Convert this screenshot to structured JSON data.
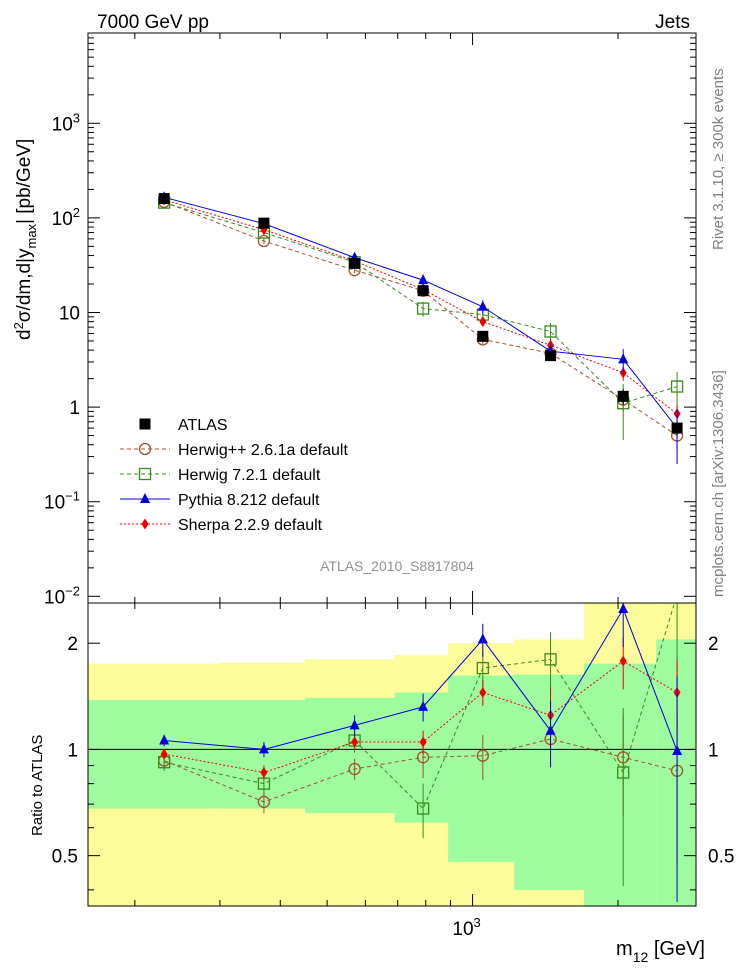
{
  "header": {
    "left": "7000 GeV pp",
    "right": "Jets"
  },
  "side_text": {
    "top": "Rivet 3.1.10, ≥ 300k events",
    "bottom": "mcplots.cern.ch [arXiv:1306.3436]"
  },
  "analysis_label": "ATLAS_2010_S8817804",
  "y_label_main": {
    "base": "d",
    "sup": "2",
    "mid": "σ/dm,d|y",
    "sub": "max",
    "tail": "| [pb/GeV]"
  },
  "y_label_ratio": "Ratio to ATLAS",
  "x_label": {
    "base": "m",
    "sub": "12",
    "tail": " [GeV]"
  },
  "colors": {
    "ATLAS": "#000000",
    "Herwig++": "#a0522d",
    "Herwig7": "#3a8a1a",
    "Pythia": "#0000dd",
    "Sherpa": "#ee0000",
    "band_inner": "#9efc9e",
    "band_outer": "#fdfc9a"
  },
  "chart_data": [
    {
      "type": "scatter",
      "panel": "main",
      "xscale": "log",
      "yscale": "log",
      "xlim": [
        160,
        2900
      ],
      "ylim": [
        0.0085,
        9000
      ],
      "yticks": [
        {
          "v": 0.01,
          "label": "10",
          "sup": "−2"
        },
        {
          "v": 0.1,
          "label": "10",
          "sup": "−1"
        },
        {
          "v": 1,
          "label": "1",
          "sup": ""
        },
        {
          "v": 10,
          "label": "10",
          "sup": ""
        },
        {
          "v": 100,
          "label": "10",
          "sup": "2"
        },
        {
          "v": 1000,
          "label": "10",
          "sup": "3"
        }
      ],
      "x": [
        230,
        370,
        570,
        790,
        1050,
        1450,
        2050,
        2650
      ],
      "series": [
        {
          "name": "ATLAS",
          "label": "ATLAS",
          "marker": "square-filled",
          "style": "none",
          "values": [
            160,
            88,
            33,
            17,
            5.6,
            3.5,
            1.3,
            0.6
          ],
          "err": [
            10,
            6,
            2.5,
            1.5,
            0.5,
            0.4,
            0.25,
            0.1
          ]
        },
        {
          "name": "Herwig++",
          "label": "Herwig++ 2.6.1a default",
          "marker": "circle-open",
          "style": "dashed",
          "values": [
            148,
            57,
            28,
            17,
            5.2,
            3.7,
            1.2,
            0.5
          ],
          "err": [
            8,
            4,
            2,
            1.5,
            0.6,
            0.5,
            0.3,
            0.15
          ]
        },
        {
          "name": "Herwig7",
          "label": "Herwig 7.2.1 default",
          "marker": "square-open",
          "style": "dashed",
          "values": [
            145,
            70,
            34,
            11,
            9.5,
            6.3,
            1.1,
            1.65
          ],
          "err": [
            8,
            5,
            3,
            2,
            1.5,
            1.5,
            0.65,
            0.7
          ]
        },
        {
          "name": "Pythia",
          "label": "Pythia 8.212 default",
          "marker": "triangle-filled",
          "style": "solid",
          "values": [
            165,
            87,
            38,
            22,
            11.5,
            3.9,
            3.2,
            0.6
          ],
          "err": [
            8,
            5,
            3,
            3,
            2,
            0.8,
            0.9,
            0.35
          ]
        },
        {
          "name": "Sherpa",
          "label": "Sherpa 2.2.9 default",
          "marker": "diamond-filled",
          "style": "dotted",
          "values": [
            155,
            75,
            35,
            17.5,
            8,
            4.5,
            2.3,
            0.85
          ],
          "err": [
            6,
            4,
            2,
            1.5,
            0.8,
            0.8,
            0.4,
            0.2
          ]
        }
      ]
    },
    {
      "type": "scatter",
      "panel": "ratio",
      "xscale": "log",
      "yscale": "log",
      "xlim": [
        160,
        2900
      ],
      "ylim": [
        0.36,
        2.6
      ],
      "yticks": [
        {
          "v": 0.5,
          "label": "0.5"
        },
        {
          "v": 1,
          "label": "1"
        },
        {
          "v": 2,
          "label": "2"
        }
      ],
      "xticks": [
        {
          "v": 1000,
          "label": "10",
          "sup": "3"
        }
      ],
      "bands": {
        "edges": [
          160,
          300,
          450,
          690,
          890,
          1220,
          1700,
          2400,
          2900
        ],
        "inner": [
          [
            0.68,
            1.38
          ],
          [
            0.68,
            1.38
          ],
          [
            0.66,
            1.4
          ],
          [
            0.62,
            1.45
          ],
          [
            0.48,
            1.62
          ],
          [
            0.4,
            1.63
          ],
          [
            0.36,
            1.75
          ],
          [
            0.36,
            2.05
          ]
        ],
        "outer": [
          [
            0.36,
            1.75
          ],
          [
            0.36,
            1.76
          ],
          [
            0.36,
            1.8
          ],
          [
            0.36,
            1.85
          ],
          [
            0.36,
            2.0
          ],
          [
            0.36,
            2.05
          ],
          [
            0.36,
            2.6
          ],
          [
            0.36,
            2.6
          ]
        ]
      },
      "x": [
        230,
        370,
        570,
        790,
        1050,
        1450,
        2050,
        2650
      ],
      "series": [
        {
          "name": "Herwig++",
          "values": [
            0.93,
            0.71,
            0.88,
            0.95,
            0.96,
            1.07,
            0.95,
            0.87
          ],
          "err": [
            0.05,
            0.05,
            0.06,
            0.12,
            0.14,
            0.18,
            0.3,
            0.4
          ]
        },
        {
          "name": "Herwig7",
          "values": [
            0.92,
            0.8,
            1.06,
            0.68,
            1.7,
            1.8,
            0.86,
            2.75
          ],
          "err": [
            0.05,
            0.06,
            0.08,
            0.12,
            0.2,
            0.35,
            0.45,
            1.2
          ]
        },
        {
          "name": "Pythia",
          "values": [
            1.06,
            1.0,
            1.17,
            1.32,
            2.05,
            1.13,
            2.5,
            0.99
          ],
          "err": [
            0.04,
            0.05,
            0.08,
            0.12,
            0.22,
            0.24,
            0.55,
            0.62
          ]
        },
        {
          "name": "Sherpa",
          "values": [
            0.97,
            0.86,
            1.05,
            1.05,
            1.45,
            1.25,
            1.78,
            1.45
          ],
          "err": [
            0.03,
            0.04,
            0.05,
            0.08,
            0.12,
            0.25,
            0.3,
            0.35
          ]
        }
      ]
    }
  ]
}
